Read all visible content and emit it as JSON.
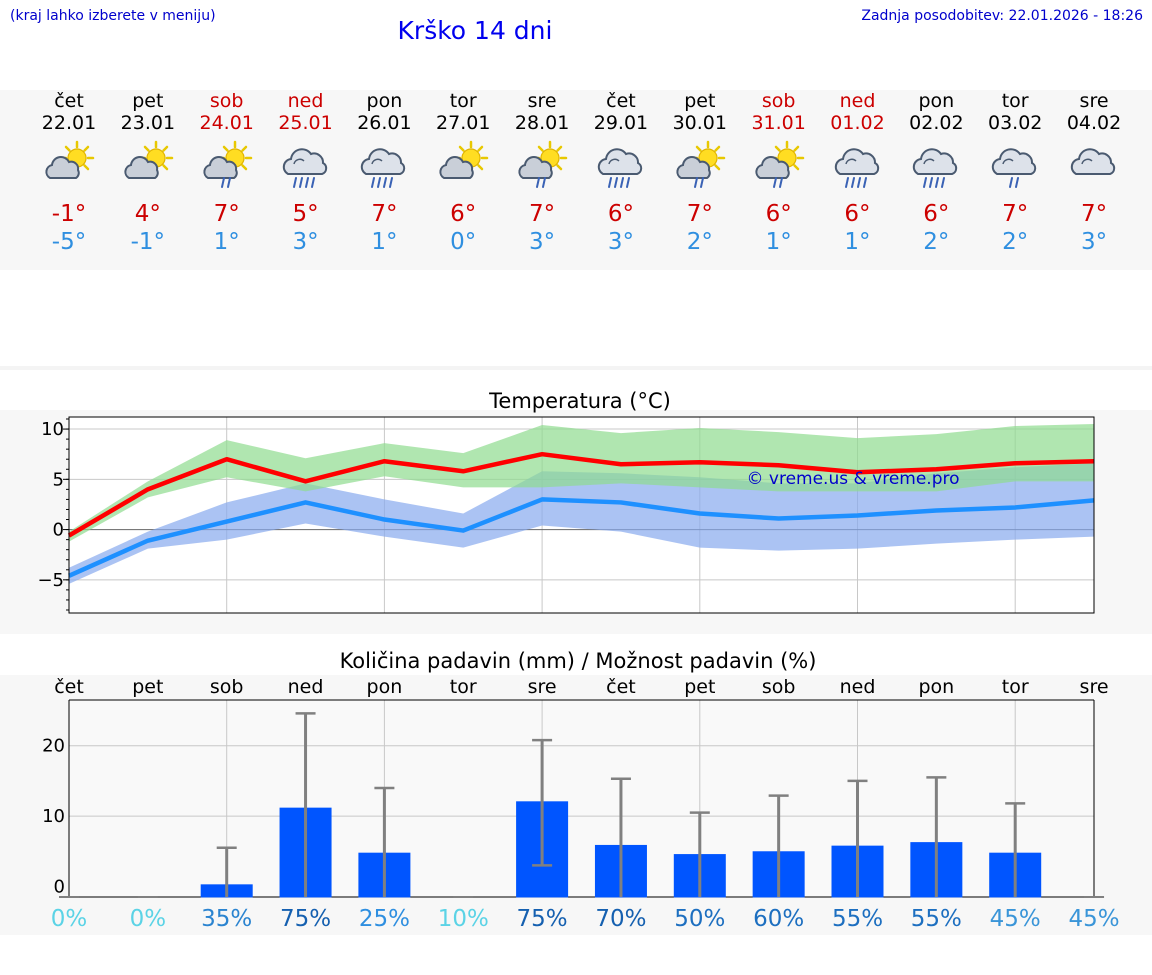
{
  "header": {
    "hint": "(kraj lahko izberete v meniju)",
    "title": "Krško 14 dni",
    "updated": "Zadnja posodobitev: 22.01.2026 - 18:26"
  },
  "days": [
    {
      "name": "čet",
      "date": "22.01",
      "icon": "sun-cloud-icon",
      "max": "-1°",
      "min": "-5°",
      "weekend": false
    },
    {
      "name": "pet",
      "date": "23.01",
      "icon": "sun-cloud-icon",
      "max": "4°",
      "min": "-1°",
      "weekend": false
    },
    {
      "name": "sob",
      "date": "24.01",
      "icon": "sun-cloud-rain-icon",
      "max": "7°",
      "min": "1°",
      "weekend": true
    },
    {
      "name": "ned",
      "date": "25.01",
      "icon": "cloud-rain-icon",
      "max": "5°",
      "min": "3°",
      "weekend": true
    },
    {
      "name": "pon",
      "date": "26.01",
      "icon": "cloud-rain-icon",
      "max": "7°",
      "min": "1°",
      "weekend": false
    },
    {
      "name": "tor",
      "date": "27.01",
      "icon": "sun-cloud-icon",
      "max": "6°",
      "min": "0°",
      "weekend": false
    },
    {
      "name": "sre",
      "date": "28.01",
      "icon": "sun-cloud-rain-icon",
      "max": "7°",
      "min": "3°",
      "weekend": false
    },
    {
      "name": "čet",
      "date": "29.01",
      "icon": "cloud-rain-icon",
      "max": "6°",
      "min": "3°",
      "weekend": false
    },
    {
      "name": "pet",
      "date": "30.01",
      "icon": "sun-cloud-rain-icon",
      "max": "7°",
      "min": "2°",
      "weekend": false
    },
    {
      "name": "sob",
      "date": "31.01",
      "icon": "sun-cloud-rain-icon",
      "max": "6°",
      "min": "1°",
      "weekend": true
    },
    {
      "name": "ned",
      "date": "01.02",
      "icon": "cloud-rain-icon",
      "max": "6°",
      "min": "1°",
      "weekend": true
    },
    {
      "name": "pon",
      "date": "02.02",
      "icon": "cloud-rain-icon",
      "max": "6°",
      "min": "2°",
      "weekend": false
    },
    {
      "name": "tor",
      "date": "03.02",
      "icon": "cloud-light-rain-icon",
      "max": "7°",
      "min": "2°",
      "weekend": false
    },
    {
      "name": "sre",
      "date": "04.02",
      "icon": "cloud-icon",
      "max": "7°",
      "min": "3°",
      "weekend": false
    }
  ],
  "colors": {
    "max": "#cc0000",
    "min": "#2f8fe0",
    "maxLine": "#ff0000",
    "minLine": "#1e90ff",
    "maxBand": "#8fdc8f",
    "minBand": "#88aaee",
    "bar": "#0055ff",
    "errbar": "#808080",
    "watermark": "#0000cc"
  },
  "chart_data": [
    {
      "type": "line",
      "title": "Temperatura (°C)",
      "watermark": "© vreme.us & vreme.pro",
      "x": [
        0,
        1,
        2,
        3,
        4,
        5,
        6,
        7,
        8,
        9,
        10,
        11,
        12,
        13
      ],
      "ylim": [
        -8.3,
        11.2
      ],
      "yticks": [
        10,
        5,
        0,
        -5
      ],
      "ytick_labels": [
        "10",
        "5",
        "0",
        "−5"
      ],
      "series": [
        {
          "name": "max",
          "values": [
            -0.6,
            4.0,
            7.0,
            4.8,
            6.8,
            5.8,
            7.5,
            6.5,
            6.7,
            6.4,
            5.7,
            6.0,
            6.6,
            6.8
          ],
          "band_low": [
            -1.2,
            3.2,
            5.2,
            3.8,
            5.3,
            4.2,
            4.2,
            4.6,
            4.2,
            3.8,
            3.8,
            3.8,
            4.8,
            4.8
          ],
          "band_high": [
            -0.2,
            4.8,
            8.9,
            7.1,
            8.6,
            7.6,
            10.4,
            9.6,
            10.1,
            9.7,
            9.1,
            9.5,
            10.3,
            10.5
          ]
        },
        {
          "name": "min",
          "values": [
            -4.6,
            -1.1,
            0.8,
            2.7,
            1.0,
            -0.1,
            3.0,
            2.7,
            1.6,
            1.1,
            1.4,
            1.9,
            2.2,
            2.9
          ],
          "band_low": [
            -5.4,
            -1.9,
            -1.0,
            0.6,
            -0.7,
            -1.8,
            0.4,
            -0.2,
            -1.8,
            -2.1,
            -1.9,
            -1.4,
            -1.0,
            -0.7
          ],
          "band_high": [
            -3.8,
            -0.2,
            2.7,
            4.6,
            3.0,
            1.6,
            5.8,
            5.6,
            5.2,
            4.6,
            4.6,
            5.6,
            6.2,
            6.6
          ]
        }
      ]
    },
    {
      "type": "bar",
      "title": "Količina padavin (mm) / Možnost padavin (%)",
      "categories": [
        "čet",
        "pet",
        "sob",
        "ned",
        "pon",
        "tor",
        "sre",
        "čet",
        "pet",
        "sob",
        "ned",
        "pon",
        "tor",
        "sre"
      ],
      "values": [
        0,
        0,
        0.3,
        11.2,
        4.8,
        0,
        12.1,
        5.9,
        4.6,
        5.0,
        5.8,
        6.3,
        4.8,
        0
      ],
      "error_low": [
        0,
        0,
        0,
        0,
        0,
        0,
        3.0,
        0,
        0,
        0,
        0,
        0,
        0,
        0
      ],
      "error_high": [
        0,
        0,
        5.5,
        24.6,
        14.0,
        0,
        20.8,
        15.3,
        10.5,
        12.9,
        15.0,
        15.5,
        11.8,
        0
      ],
      "ylim": [
        -1.5,
        26.5
      ],
      "yticks": [
        20,
        10,
        0
      ],
      "ytick_labels": [
        "20",
        "10",
        "0"
      ],
      "probability": [
        "0%",
        "0%",
        "35%",
        "75%",
        "25%",
        "10%",
        "75%",
        "70%",
        "50%",
        "60%",
        "55%",
        "55%",
        "45%",
        "45%"
      ],
      "probability_colors": [
        "#5bd3e6",
        "#5bd3e6",
        "#2b84d0",
        "#1560b0",
        "#2f8fe0",
        "#5bd3e6",
        "#1560b0",
        "#1560b0",
        "#1d6fc0",
        "#1d6fc0",
        "#1d6fc0",
        "#1d6fc0",
        "#3a95d8",
        "#3a95d8"
      ]
    }
  ]
}
